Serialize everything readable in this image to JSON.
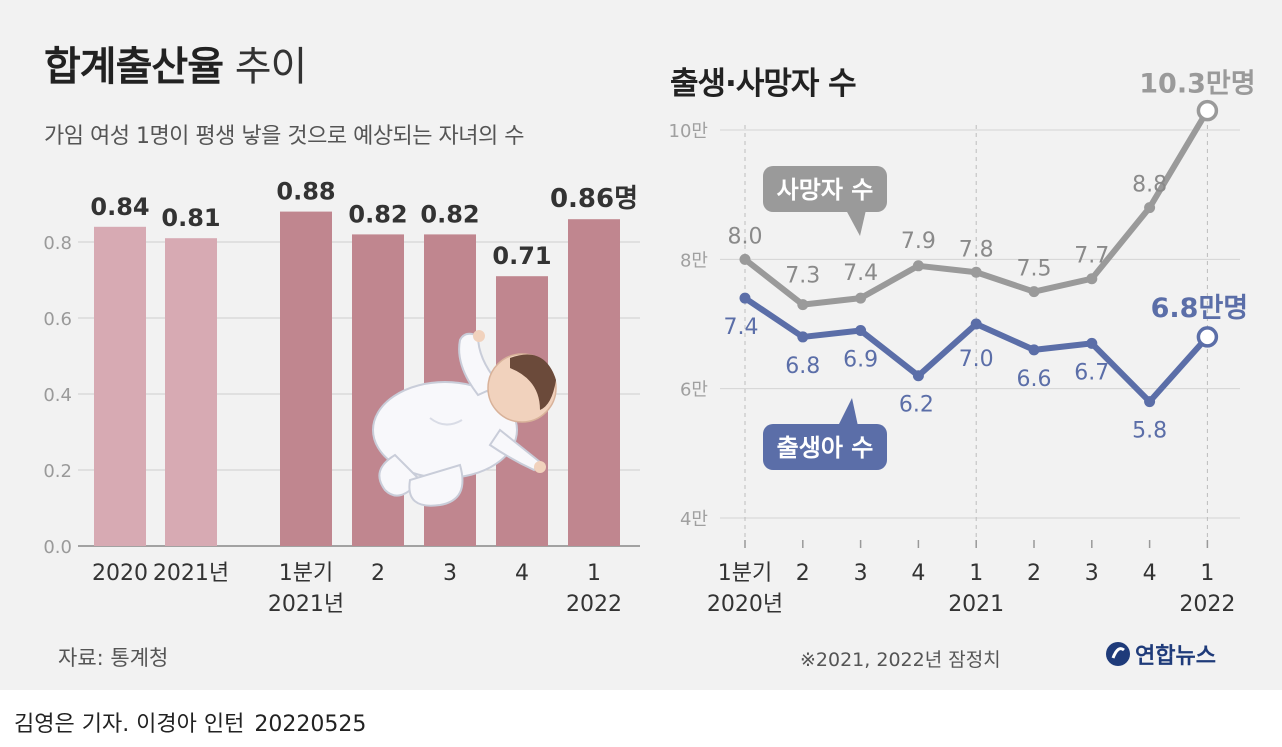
{
  "left_chart": {
    "title_bold": "합계출산율",
    "title_light": " 추이",
    "subtitle": "가임 여성 1명이 평생 낳을 것으로 예상되는 자녀의 수"
  },
  "right_chart": {
    "title": "출생·사망자 수"
  },
  "source": "자료: 통계청",
  "note": "※2021, 2022년 잠정치",
  "logo_text": "연합뉴스",
  "byline": {
    "author": "김영은 기자. 이경아 인턴",
    "date": "20220525"
  },
  "colors": {
    "bar_light": "#d7aab3",
    "bar_dark": "#c0868f",
    "deaths": "#9a9a9a",
    "births": "#5b6ea8"
  },
  "chart_data": [
    {
      "type": "bar",
      "categories": [
        "2020",
        "2021년",
        "1분기\n2021년",
        "2",
        "3",
        "4",
        "1\n2022"
      ],
      "values": [
        0.84,
        0.81,
        0.88,
        0.82,
        0.82,
        0.71,
        0.86
      ],
      "value_labels": [
        "0.84",
        "0.81",
        "0.88",
        "0.82",
        "0.82",
        "0.71",
        "0.86명"
      ],
      "yticks": [
        "0.0",
        "0.2",
        "0.4",
        "0.6",
        "0.8"
      ],
      "ylim": [
        0,
        1.0
      ],
      "grid": true
    },
    {
      "type": "line",
      "categories": [
        "1분기\n2020년",
        "2",
        "3",
        "4",
        "1\n2021",
        "2",
        "3",
        "4",
        "1\n2022"
      ],
      "yticks": [
        "4만",
        "6만",
        "8만",
        "10만"
      ],
      "ylim": [
        4,
        10.5
      ],
      "series": [
        {
          "name": "사망자 수",
          "values": [
            8.0,
            7.3,
            7.4,
            7.9,
            7.8,
            7.5,
            7.7,
            8.8,
            10.3
          ],
          "labels": [
            "8.0",
            "7.3",
            "7.4",
            "7.9",
            "7.8",
            "7.5",
            "7.7",
            "8.8",
            "10.3만명"
          ]
        },
        {
          "name": "출생아 수",
          "values": [
            7.4,
            6.8,
            6.9,
            6.2,
            7.0,
            6.6,
            6.7,
            5.8,
            6.8
          ],
          "labels": [
            "7.4",
            "6.8",
            "6.9",
            "6.2",
            "7.0",
            "6.6",
            "6.7",
            "5.8",
            "6.8만명"
          ]
        }
      ]
    }
  ]
}
